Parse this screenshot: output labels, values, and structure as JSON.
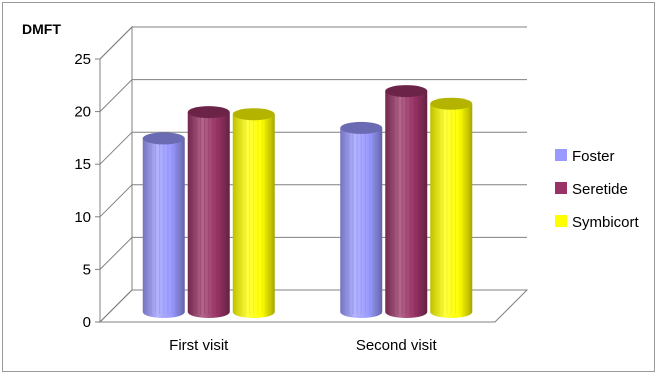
{
  "chart_data": {
    "type": "bar",
    "title": "",
    "xlabel": "",
    "ylabel": "DMFT",
    "categories": [
      "First visit",
      "Second visit"
    ],
    "series": [
      {
        "name": "Foster",
        "values": [
          16.5,
          17.5
        ],
        "color": "#9999ff"
      },
      {
        "name": "Seretide",
        "values": [
          19,
          21
        ],
        "color": "#993366"
      },
      {
        "name": "Symbicort",
        "values": [
          18.8,
          19.8
        ],
        "color": "#ffff00"
      }
    ],
    "ylim": [
      0,
      25
    ],
    "yticks": [
      "0",
      "5",
      "10",
      "15",
      "20",
      "25"
    ],
    "grid": true,
    "legend_position": "right",
    "style": "3d-cylinder"
  }
}
